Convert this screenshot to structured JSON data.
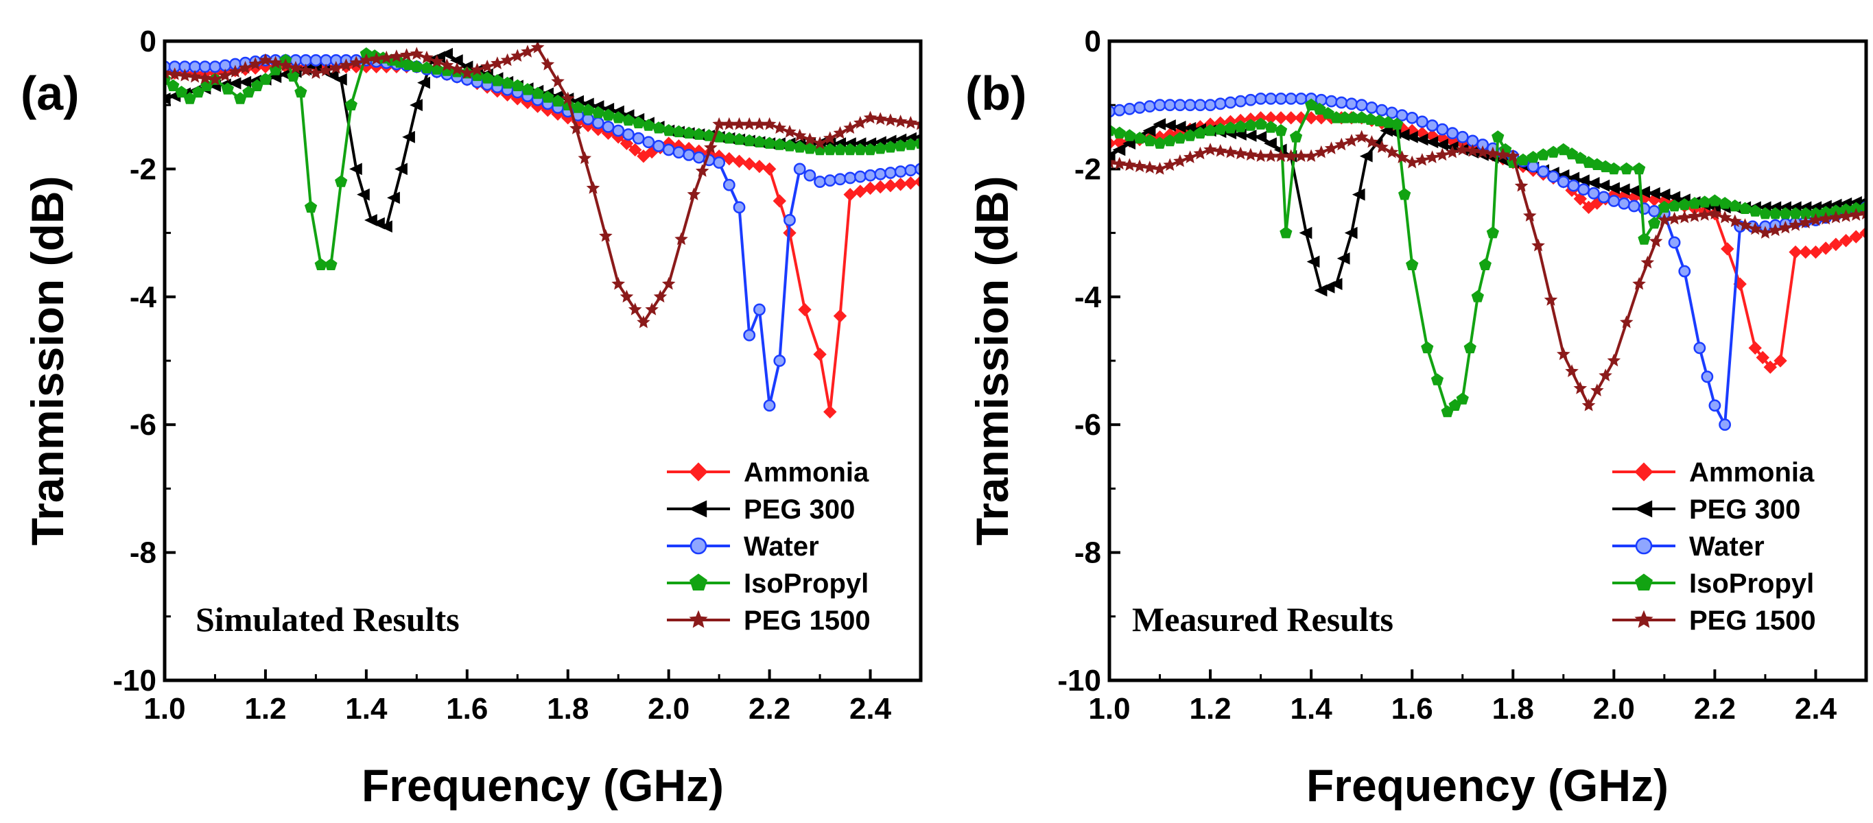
{
  "chart_data": [
    {
      "type": "line",
      "panel_label": "(a)",
      "annotation": "Simulated Results",
      "xlabel": "Frequency (GHz)",
      "ylabel": "Tranmission (dB)",
      "xlim": [
        1.0,
        2.5
      ],
      "ylim": [
        -10,
        0
      ],
      "xticks": [
        1.0,
        1.2,
        1.4,
        1.6,
        1.8,
        2.0,
        2.2,
        2.4
      ],
      "xtick_labels": [
        "1.0",
        "1.2",
        "1.4",
        "1.6",
        "1.8",
        "2.0",
        "2.2",
        "2.4"
      ],
      "yticks": [
        0,
        -2,
        -4,
        -6,
        -8,
        -10
      ],
      "ytick_labels": [
        "0",
        "-2",
        "-4",
        "-6",
        "-8",
        "-10"
      ],
      "legend_position": "bottom-right",
      "series": [
        {
          "name": "Ammonia",
          "color": "#ff2020",
          "marker": "diamond",
          "x": [
            1.0,
            1.1,
            1.2,
            1.3,
            1.4,
            1.5,
            1.6,
            1.7,
            1.8,
            1.9,
            1.95,
            2.0,
            2.1,
            2.2,
            2.24,
            2.27,
            2.3,
            2.32,
            2.34,
            2.36,
            2.4,
            2.5
          ],
          "y": [
            -0.5,
            -0.5,
            -0.4,
            -0.4,
            -0.4,
            -0.4,
            -0.6,
            -0.9,
            -1.2,
            -1.5,
            -1.8,
            -1.6,
            -1.8,
            -2.0,
            -3.0,
            -4.2,
            -4.9,
            -5.8,
            -4.3,
            -2.4,
            -2.3,
            -2.2
          ]
        },
        {
          "name": "PEG 300",
          "color": "#000000",
          "marker": "triangle-left",
          "x": [
            1.0,
            1.1,
            1.2,
            1.3,
            1.35,
            1.38,
            1.41,
            1.44,
            1.47,
            1.5,
            1.53,
            1.56,
            1.6,
            1.7,
            1.8,
            1.9,
            2.0,
            2.1,
            2.2,
            2.3,
            2.4,
            2.5
          ],
          "y": [
            -0.9,
            -0.7,
            -0.6,
            -0.4,
            -0.6,
            -2.0,
            -2.8,
            -2.9,
            -2.0,
            -1.0,
            -0.3,
            -0.2,
            -0.4,
            -0.7,
            -0.9,
            -1.1,
            -1.4,
            -1.5,
            -1.6,
            -1.6,
            -1.6,
            -1.5
          ]
        },
        {
          "name": "Water",
          "color": "#1a3cff",
          "marker": "circle",
          "x": [
            1.0,
            1.1,
            1.2,
            1.3,
            1.4,
            1.5,
            1.6,
            1.7,
            1.8,
            1.9,
            2.0,
            2.1,
            2.14,
            2.16,
            2.18,
            2.2,
            2.22,
            2.24,
            2.26,
            2.3,
            2.4,
            2.5
          ],
          "y": [
            -0.4,
            -0.4,
            -0.3,
            -0.3,
            -0.3,
            -0.4,
            -0.6,
            -0.8,
            -1.1,
            -1.4,
            -1.7,
            -1.9,
            -2.6,
            -4.6,
            -4.2,
            -5.7,
            -5.0,
            -2.8,
            -2.0,
            -2.2,
            -2.1,
            -2.0
          ]
        },
        {
          "name": "IsoPropyl",
          "color": "#12a312",
          "marker": "pentagon",
          "x": [
            1.0,
            1.05,
            1.1,
            1.15,
            1.2,
            1.24,
            1.27,
            1.29,
            1.31,
            1.33,
            1.35,
            1.37,
            1.4,
            1.45,
            1.5,
            1.6,
            1.7,
            1.8,
            1.9,
            2.0,
            2.1,
            2.2,
            2.3,
            2.4,
            2.5
          ],
          "y": [
            -0.6,
            -0.9,
            -0.6,
            -0.9,
            -0.6,
            -0.3,
            -0.8,
            -2.6,
            -3.5,
            -3.5,
            -2.2,
            -1.0,
            -0.2,
            -0.3,
            -0.4,
            -0.5,
            -0.7,
            -1.0,
            -1.2,
            -1.4,
            -1.5,
            -1.6,
            -1.7,
            -1.7,
            -1.6
          ]
        },
        {
          "name": "PEG 1500",
          "color": "#8b1a1a",
          "marker": "star",
          "x": [
            1.0,
            1.1,
            1.2,
            1.3,
            1.4,
            1.5,
            1.6,
            1.68,
            1.74,
            1.8,
            1.85,
            1.9,
            1.95,
            2.0,
            2.05,
            2.1,
            2.2,
            2.3,
            2.4,
            2.5
          ],
          "y": [
            -0.5,
            -0.6,
            -0.3,
            -0.5,
            -0.3,
            -0.2,
            -0.5,
            -0.3,
            -0.1,
            -0.9,
            -2.3,
            -3.8,
            -4.4,
            -3.8,
            -2.4,
            -1.3,
            -1.3,
            -1.6,
            -1.2,
            -1.3
          ]
        }
      ]
    },
    {
      "type": "line",
      "panel_label": "(b)",
      "annotation": "Measured Results",
      "xlabel": "Frequency (GHz)",
      "ylabel": "Tranmission (dB)",
      "xlim": [
        1.0,
        2.5
      ],
      "ylim": [
        -10,
        0
      ],
      "xticks": [
        1.0,
        1.2,
        1.4,
        1.6,
        1.8,
        2.0,
        2.2,
        2.4
      ],
      "xtick_labels": [
        "1.0",
        "1.2",
        "1.4",
        "1.6",
        "1.8",
        "2.0",
        "2.2",
        "2.4"
      ],
      "yticks": [
        0,
        -2,
        -4,
        -6,
        -8,
        -10
      ],
      "ytick_labels": [
        "0",
        "-2",
        "-4",
        "-6",
        "-8",
        "-10"
      ],
      "legend_position": "bottom-right",
      "series": [
        {
          "name": "Ammonia",
          "color": "#ff2020",
          "marker": "diamond",
          "x": [
            1.0,
            1.1,
            1.2,
            1.3,
            1.4,
            1.5,
            1.6,
            1.7,
            1.8,
            1.9,
            1.95,
            2.0,
            2.1,
            2.2,
            2.25,
            2.28,
            2.31,
            2.33,
            2.36,
            2.4,
            2.5
          ],
          "y": [
            -1.6,
            -1.5,
            -1.3,
            -1.2,
            -1.2,
            -1.2,
            -1.4,
            -1.6,
            -1.9,
            -2.2,
            -2.6,
            -2.4,
            -2.5,
            -2.7,
            -3.8,
            -4.8,
            -5.1,
            -5.0,
            -3.3,
            -3.3,
            -3.0
          ]
        },
        {
          "name": "PEG 300",
          "color": "#000000",
          "marker": "triangle-left",
          "x": [
            1.0,
            1.1,
            1.2,
            1.3,
            1.36,
            1.39,
            1.42,
            1.45,
            1.48,
            1.51,
            1.55,
            1.6,
            1.7,
            1.8,
            1.9,
            2.0,
            2.1,
            2.2,
            2.3,
            2.4,
            2.5
          ],
          "y": [
            -1.8,
            -1.3,
            -1.4,
            -1.5,
            -1.8,
            -3.0,
            -3.9,
            -3.8,
            -3.0,
            -1.8,
            -1.4,
            -1.5,
            -1.7,
            -1.9,
            -2.1,
            -2.3,
            -2.4,
            -2.6,
            -2.6,
            -2.6,
            -2.5
          ]
        },
        {
          "name": "Water",
          "color": "#1a3cff",
          "marker": "circle",
          "x": [
            1.0,
            1.1,
            1.2,
            1.3,
            1.4,
            1.5,
            1.6,
            1.7,
            1.8,
            1.9,
            2.0,
            2.1,
            2.14,
            2.17,
            2.2,
            2.22,
            2.25,
            2.3,
            2.4,
            2.5
          ],
          "y": [
            -1.1,
            -1.0,
            -1.0,
            -0.9,
            -0.9,
            -1.0,
            -1.2,
            -1.5,
            -1.8,
            -2.2,
            -2.5,
            -2.7,
            -3.6,
            -4.8,
            -5.7,
            -6.0,
            -2.9,
            -2.9,
            -2.8,
            -2.6
          ]
        },
        {
          "name": "IsoPropyl",
          "color": "#12a312",
          "marker": "pentagon",
          "x": [
            1.0,
            1.1,
            1.2,
            1.3,
            1.34,
            1.35,
            1.37,
            1.4,
            1.45,
            1.5,
            1.57,
            1.6,
            1.63,
            1.67,
            1.7,
            1.73,
            1.76,
            1.77,
            1.8,
            1.9,
            1.95,
            2.0,
            2.05,
            2.06,
            2.1,
            2.2,
            2.3,
            2.4,
            2.5
          ],
          "y": [
            -1.4,
            -1.6,
            -1.4,
            -1.3,
            -1.4,
            -3.0,
            -1.5,
            -1.0,
            -1.2,
            -1.2,
            -1.3,
            -3.5,
            -4.8,
            -5.8,
            -5.6,
            -4.0,
            -3.0,
            -1.5,
            -1.9,
            -1.7,
            -1.9,
            -2.0,
            -2.0,
            -3.1,
            -2.6,
            -2.5,
            -2.7,
            -2.7,
            -2.6
          ]
        },
        {
          "name": "PEG 1500",
          "color": "#8b1a1a",
          "marker": "star",
          "x": [
            1.0,
            1.1,
            1.2,
            1.3,
            1.4,
            1.5,
            1.6,
            1.7,
            1.8,
            1.85,
            1.9,
            1.95,
            2.0,
            2.05,
            2.1,
            2.2,
            2.3,
            2.4,
            2.5
          ],
          "y": [
            -1.9,
            -2.0,
            -1.7,
            -1.8,
            -1.8,
            -1.5,
            -1.9,
            -1.7,
            -1.8,
            -3.2,
            -4.9,
            -5.7,
            -5.0,
            -3.8,
            -2.8,
            -2.7,
            -3.0,
            -2.8,
            -2.7
          ]
        }
      ]
    }
  ]
}
